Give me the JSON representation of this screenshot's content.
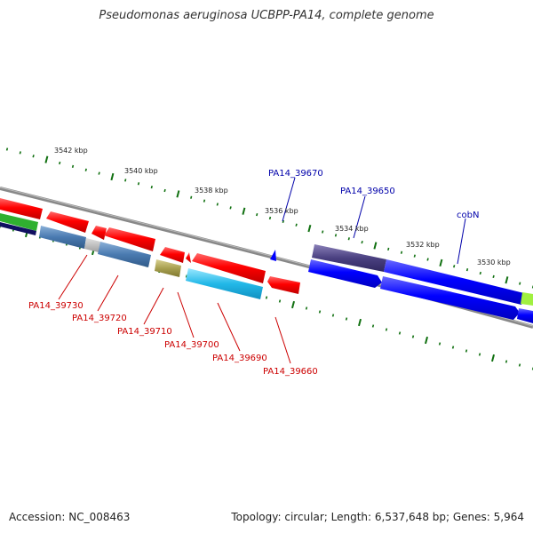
{
  "title": "Pseudomonas aeruginosa UCBPP-PA14, complete genome",
  "footer": {
    "accession": "Accession: NC_008463",
    "topology": "Topology: circular; Length: 6,537,648 bp; Genes: 5,964"
  },
  "scale_labels": [
    "3542 kbp",
    "3540 kbp",
    "3538 kbp",
    "3536 kbp",
    "3534 kbp",
    "3532 kbp",
    "3530 kbp"
  ],
  "genes_top": [
    "PA14_39670",
    "PA14_39650",
    "cobN"
  ],
  "genes_bottom": [
    "PA14_39730",
    "PA14_39720",
    "PA14_39710",
    "PA14_39700",
    "PA14_39690",
    "PA14_39660"
  ],
  "colors": {
    "red": "#ff0000",
    "blue": "#0000ff",
    "steelblue": "#4a7ab0",
    "cyan": "#22b8e8",
    "purple": "#4a4080",
    "olive": "#a8a050",
    "navy": "#101060",
    "green": "#40c040",
    "lime": "#a0f040",
    "tick_green": "#107010",
    "top_label": "#0000aa",
    "bottom_label": "#cc0000"
  }
}
